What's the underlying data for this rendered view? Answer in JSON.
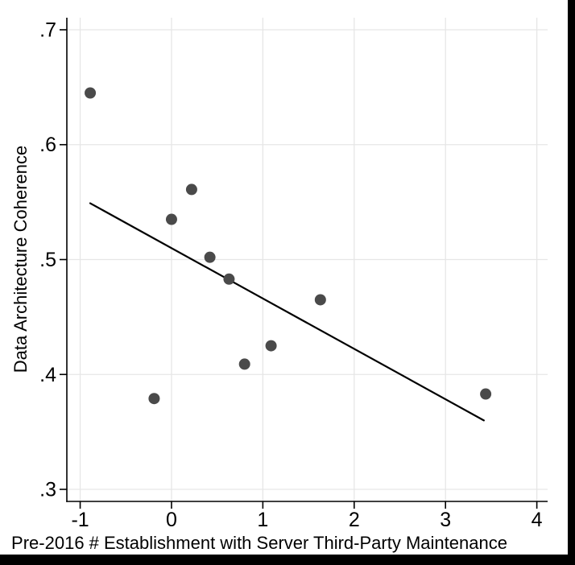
{
  "chart_data": {
    "type": "scatter",
    "title": "",
    "xlabel": "Pre-2016 # Establishment with Server Third-Party Maintenance",
    "ylabel": "Data Architecture Coherence",
    "x_ticks": [
      -1,
      0,
      1,
      2,
      3,
      4
    ],
    "x_tick_labels": [
      "-1",
      "0",
      "1",
      "2",
      "3",
      "4"
    ],
    "y_ticks": [
      0.3,
      0.4,
      0.5,
      0.6,
      0.7
    ],
    "y_tick_labels": [
      ".3",
      ".4",
      ".5",
      ".6",
      ".7"
    ],
    "xlim": [
      -1.146,
      4.118
    ],
    "ylim": [
      0.2895,
      0.7105
    ],
    "grid": true,
    "legend_position": "none",
    "points": [
      [
        -0.89,
        0.645
      ],
      [
        0.0,
        0.535
      ],
      [
        0.22,
        0.561
      ],
      [
        0.42,
        0.502
      ],
      [
        0.63,
        0.483
      ],
      [
        0.8,
        0.409
      ],
      [
        1.09,
        0.425
      ],
      [
        1.63,
        0.465
      ],
      [
        -0.19,
        0.379
      ],
      [
        3.44,
        0.383
      ]
    ],
    "fit_line": {
      "x1": -0.89,
      "y1": 0.549,
      "x2": 3.42,
      "y2": 0.36
    },
    "colors": {
      "marker": "#4a4a4a",
      "fit_line": "#000000",
      "grid": "#e6e6e6",
      "axis": "#000000",
      "background": "#ffffff",
      "letterbox": "#000000"
    }
  }
}
